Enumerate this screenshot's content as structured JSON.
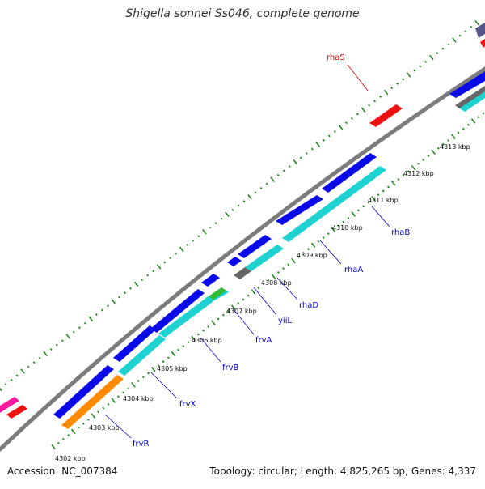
{
  "title": "Shigella sonnei Ss046, complete genome",
  "footer": {
    "accession": "Accession: NC_007384",
    "stats": "Topology: circular; Length: 4,825,265 bp; Genes: 4,337"
  },
  "colors": {
    "backbone": "#7c7c7c",
    "tick": "#1e8a1e",
    "forward_cds": "#0a0ae8",
    "reverse_cds": "#1ed2d2",
    "orange_cds": "#ff8a00",
    "red_feature": "#ee1111",
    "rna_label": "#dd0000",
    "cds_label": "#0000c8",
    "gray_feature": "#666666",
    "green_feature": "#33bb33",
    "pink_feature": "#ff1aa0",
    "purple_feature": "#55558a"
  },
  "kbp_labels": [
    "4302 kbp",
    "4303 kbp",
    "4304 kbp",
    "4305 kbp",
    "4306 kbp",
    "4307 kbp",
    "4308 kbp",
    "4309 kbp",
    "4310 kbp",
    "4311 kbp",
    "4312 kbp",
    "4313 kbp"
  ],
  "genes": [
    {
      "name": "rhaS",
      "type": "rna"
    },
    {
      "name": "rhaB",
      "type": "cds"
    },
    {
      "name": "rhaA",
      "type": "cds"
    },
    {
      "name": "rhaD",
      "type": "cds"
    },
    {
      "name": "yiiL",
      "type": "cds"
    },
    {
      "name": "frvA",
      "type": "cds"
    },
    {
      "name": "frvB",
      "type": "cds"
    },
    {
      "name": "frvX",
      "type": "cds"
    },
    {
      "name": "frvR",
      "type": "cds"
    }
  ]
}
